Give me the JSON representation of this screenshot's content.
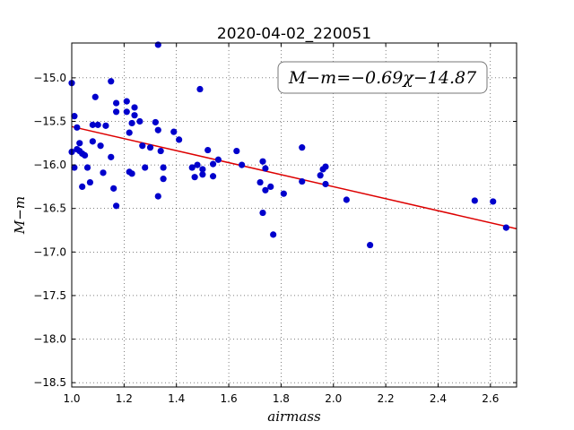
{
  "chart_data": {
    "type": "scatter",
    "title": "2020-04-02_220051",
    "xlabel": "airmass",
    "ylabel": "M−m",
    "xlim": [
      1.0,
      2.7
    ],
    "ylim": [
      -18.55,
      -14.6
    ],
    "y_inverted": true,
    "grid": true,
    "x_ticks": [
      "1.0",
      "1.2",
      "1.4",
      "1.6",
      "1.8",
      "2.0",
      "2.2",
      "2.4",
      "2.6"
    ],
    "y_ticks": [
      "−15.0",
      "−15.5",
      "−16.0",
      "−16.5",
      "−17.0",
      "−17.5",
      "−18.0",
      "−18.5"
    ],
    "annotation": "M−m=−0.69χ−14.87",
    "fit": {
      "slope": -0.69,
      "intercept": -14.87,
      "color": "#dd0000"
    },
    "marker_color": "#0000cc",
    "points": [
      [
        1.0,
        -15.06
      ],
      [
        1.0,
        -15.85
      ],
      [
        1.01,
        -15.44
      ],
      [
        1.01,
        -16.03
      ],
      [
        1.02,
        -15.57
      ],
      [
        1.02,
        -15.82
      ],
      [
        1.03,
        -15.75
      ],
      [
        1.03,
        -15.84
      ],
      [
        1.04,
        -16.25
      ],
      [
        1.04,
        -15.87
      ],
      [
        1.05,
        -15.89
      ],
      [
        1.06,
        -16.03
      ],
      [
        1.07,
        -16.2
      ],
      [
        1.08,
        -15.54
      ],
      [
        1.08,
        -15.73
      ],
      [
        1.09,
        -15.22
      ],
      [
        1.1,
        -15.54
      ],
      [
        1.11,
        -15.78
      ],
      [
        1.12,
        -16.09
      ],
      [
        1.13,
        -15.55
      ],
      [
        1.15,
        -15.04
      ],
      [
        1.15,
        -15.91
      ],
      [
        1.16,
        -16.27
      ],
      [
        1.17,
        -16.47
      ],
      [
        1.17,
        -15.29
      ],
      [
        1.17,
        -15.39
      ],
      [
        1.21,
        -15.27
      ],
      [
        1.21,
        -15.39
      ],
      [
        1.22,
        -15.63
      ],
      [
        1.22,
        -16.08
      ],
      [
        1.23,
        -15.52
      ],
      [
        1.23,
        -16.1
      ],
      [
        1.24,
        -15.34
      ],
      [
        1.24,
        -15.43
      ],
      [
        1.26,
        -15.5
      ],
      [
        1.27,
        -15.78
      ],
      [
        1.28,
        -16.03
      ],
      [
        1.3,
        -15.8
      ],
      [
        1.32,
        -15.51
      ],
      [
        1.33,
        -15.6
      ],
      [
        1.33,
        -16.36
      ],
      [
        1.33,
        -14.62
      ],
      [
        1.34,
        -15.84
      ],
      [
        1.35,
        -16.16
      ],
      [
        1.35,
        -16.03
      ],
      [
        1.39,
        -15.62
      ],
      [
        1.41,
        -15.71
      ],
      [
        1.46,
        -16.03
      ],
      [
        1.47,
        -16.14
      ],
      [
        1.48,
        -16.0
      ],
      [
        1.49,
        -15.13
      ],
      [
        1.5,
        -16.11
      ],
      [
        1.5,
        -16.05
      ],
      [
        1.52,
        -15.83
      ],
      [
        1.54,
        -16.13
      ],
      [
        1.54,
        -15.99
      ],
      [
        1.56,
        -15.94
      ],
      [
        1.63,
        -15.84
      ],
      [
        1.65,
        -16.0
      ],
      [
        1.72,
        -16.2
      ],
      [
        1.73,
        -15.96
      ],
      [
        1.73,
        -16.55
      ],
      [
        1.74,
        -16.04
      ],
      [
        1.74,
        -16.29
      ],
      [
        1.76,
        -16.25
      ],
      [
        1.77,
        -16.8
      ],
      [
        1.81,
        -16.33
      ],
      [
        1.88,
        -15.8
      ],
      [
        1.88,
        -16.19
      ],
      [
        1.95,
        -16.12
      ],
      [
        1.96,
        -16.05
      ],
      [
        1.97,
        -16.22
      ],
      [
        1.97,
        -16.02
      ],
      [
        2.05,
        -16.4
      ],
      [
        2.14,
        -16.92
      ],
      [
        2.54,
        -16.41
      ],
      [
        2.61,
        -16.42
      ],
      [
        2.66,
        -16.72
      ]
    ]
  }
}
